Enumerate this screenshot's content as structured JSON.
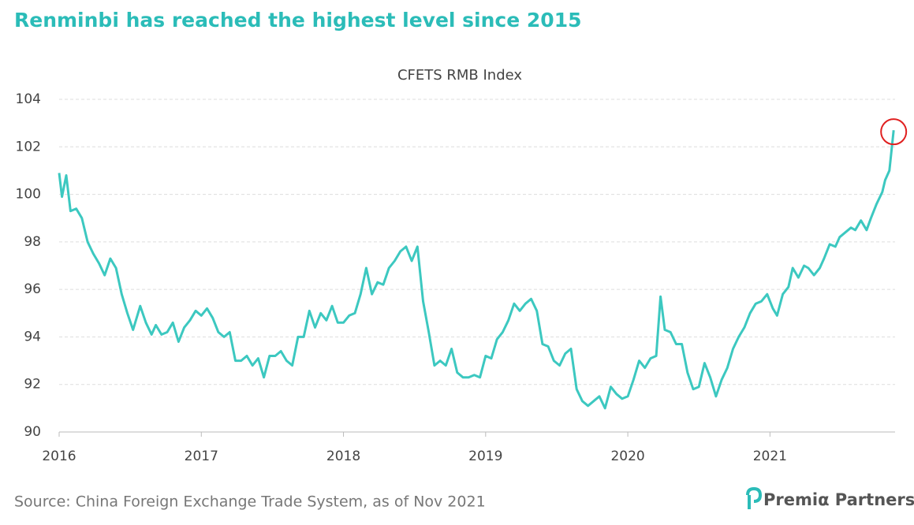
{
  "chart_data": {
    "type": "line",
    "title": "Renminbi has reached the highest level since 2015",
    "subtitle": "CFETS RMB Index",
    "source": "Source: China Foreign Exchange Trade System, as of Nov 2021",
    "logo_text": "Premiα Partners",
    "x": [
      2016.0,
      2016.02,
      2016.05,
      2016.08,
      2016.12,
      2016.16,
      2016.2,
      2016.24,
      2016.28,
      2016.32,
      2016.36,
      2016.4,
      2016.44,
      2016.48,
      2016.52,
      2016.57,
      2016.61,
      2016.65,
      2016.68,
      2016.72,
      2016.76,
      2016.8,
      2016.84,
      2016.88,
      2016.92,
      2016.96,
      2017.0,
      2017.04,
      2017.08,
      2017.12,
      2017.16,
      2017.2,
      2017.24,
      2017.28,
      2017.32,
      2017.36,
      2017.4,
      2017.44,
      2017.48,
      2017.52,
      2017.56,
      2017.6,
      2017.64,
      2017.68,
      2017.72,
      2017.76,
      2017.8,
      2017.84,
      2017.88,
      2017.92,
      2017.96,
      2018.0,
      2018.04,
      2018.08,
      2018.12,
      2018.16,
      2018.2,
      2018.24,
      2018.28,
      2018.32,
      2018.36,
      2018.4,
      2018.44,
      2018.48,
      2018.52,
      2018.56,
      2018.6,
      2018.64,
      2018.68,
      2018.72,
      2018.76,
      2018.8,
      2018.84,
      2018.88,
      2018.92,
      2018.96,
      2019.0,
      2019.04,
      2019.08,
      2019.12,
      2019.16,
      2019.2,
      2019.24,
      2019.28,
      2019.32,
      2019.36,
      2019.4,
      2019.44,
      2019.48,
      2019.52,
      2019.56,
      2019.6,
      2019.64,
      2019.68,
      2019.72,
      2019.76,
      2019.8,
      2019.84,
      2019.88,
      2019.92,
      2019.96,
      2020.0,
      2020.04,
      2020.08,
      2020.12,
      2020.16,
      2020.2,
      2020.23,
      2020.26,
      2020.3,
      2020.34,
      2020.38,
      2020.42,
      2020.46,
      2020.5,
      2020.54,
      2020.58,
      2020.62,
      2020.66,
      2020.7,
      2020.74,
      2020.78,
      2020.82,
      2020.86,
      2020.9,
      2020.94,
      2020.98,
      2021.02,
      2021.05,
      2021.09,
      2021.13,
      2021.16,
      2021.2,
      2021.24,
      2021.27,
      2021.31,
      2021.35,
      2021.38,
      2021.42,
      2021.46,
      2021.49,
      2021.53,
      2021.57,
      2021.6,
      2021.64,
      2021.68,
      2021.71,
      2021.75,
      2021.79,
      2021.81,
      2021.84,
      2021.87
    ],
    "values": [
      100.9,
      99.9,
      100.8,
      99.3,
      99.4,
      99.0,
      98.0,
      97.5,
      97.1,
      96.6,
      97.3,
      96.9,
      95.8,
      95.0,
      94.3,
      95.3,
      94.6,
      94.1,
      94.5,
      94.1,
      94.2,
      94.6,
      93.8,
      94.4,
      94.7,
      95.1,
      94.9,
      95.2,
      94.8,
      94.2,
      94.0,
      94.2,
      93.0,
      93.0,
      93.2,
      92.8,
      93.1,
      92.3,
      93.2,
      93.2,
      93.4,
      93.0,
      92.8,
      94.0,
      94.0,
      95.1,
      94.4,
      95.0,
      94.7,
      95.3,
      94.6,
      94.6,
      94.9,
      95.0,
      95.8,
      96.9,
      95.8,
      96.3,
      96.2,
      96.9,
      97.2,
      97.6,
      97.8,
      97.2,
      97.8,
      95.5,
      94.2,
      92.8,
      93.0,
      92.8,
      93.5,
      92.5,
      92.3,
      92.3,
      92.4,
      92.3,
      93.2,
      93.1,
      93.9,
      94.2,
      94.7,
      95.4,
      95.1,
      95.4,
      95.6,
      95.1,
      93.7,
      93.6,
      93.0,
      92.8,
      93.3,
      93.5,
      91.8,
      91.3,
      91.1,
      91.3,
      91.5,
      91.0,
      91.9,
      91.6,
      91.4,
      91.5,
      92.2,
      93.0,
      92.7,
      93.1,
      93.2,
      95.7,
      94.3,
      94.2,
      93.7,
      93.7,
      92.5,
      91.8,
      91.9,
      92.9,
      92.3,
      91.5,
      92.2,
      92.7,
      93.5,
      94.0,
      94.4,
      95.0,
      95.4,
      95.5,
      95.8,
      95.2,
      94.9,
      95.8,
      96.1,
      96.9,
      96.5,
      97.0,
      96.9,
      96.6,
      96.9,
      97.3,
      97.9,
      97.8,
      98.2,
      98.4,
      98.6,
      98.5,
      98.9,
      98.5,
      99.0,
      99.6,
      100.1,
      100.6,
      101.0,
      102.7
    ],
    "color": "#3cc8c0",
    "xlim": [
      2016,
      2021.88
    ],
    "xticks": [
      2016,
      2017,
      2018,
      2019,
      2020,
      2021
    ],
    "ylim": [
      90,
      104
    ],
    "yticks": [
      90,
      92,
      94,
      96,
      98,
      100,
      102,
      104
    ],
    "grid": true,
    "highlight_last": true
  }
}
